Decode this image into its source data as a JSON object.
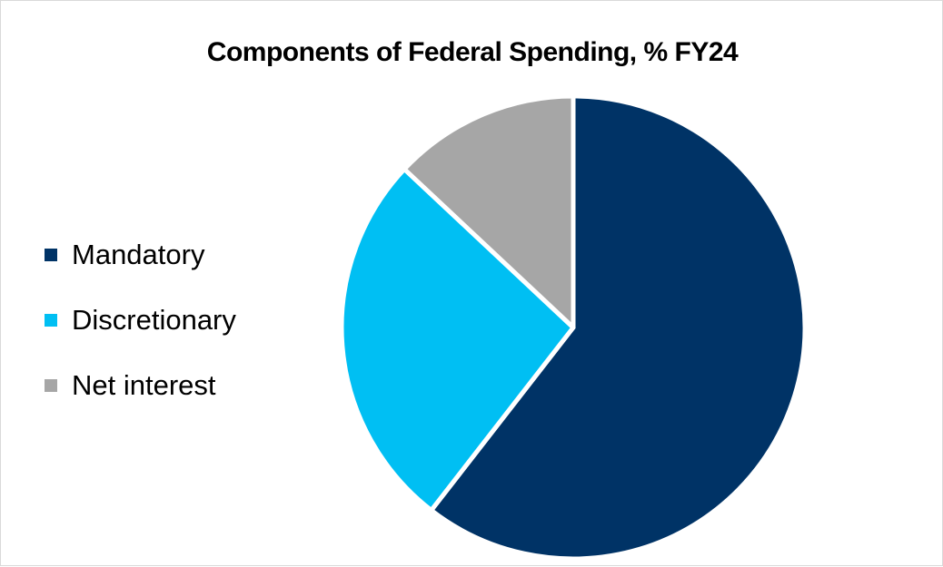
{
  "chart_data": {
    "type": "pie",
    "title": "Components of Federal Spending, % FY24",
    "categories": [
      "Mandatory",
      "Discretionary",
      "Net interest"
    ],
    "values": [
      60.5,
      26.5,
      13.0
    ],
    "colors": [
      "#003366",
      "#00bff3",
      "#a6a6a6"
    ],
    "start_angle_deg": 0,
    "direction": "clockwise",
    "legend_position": "left"
  }
}
